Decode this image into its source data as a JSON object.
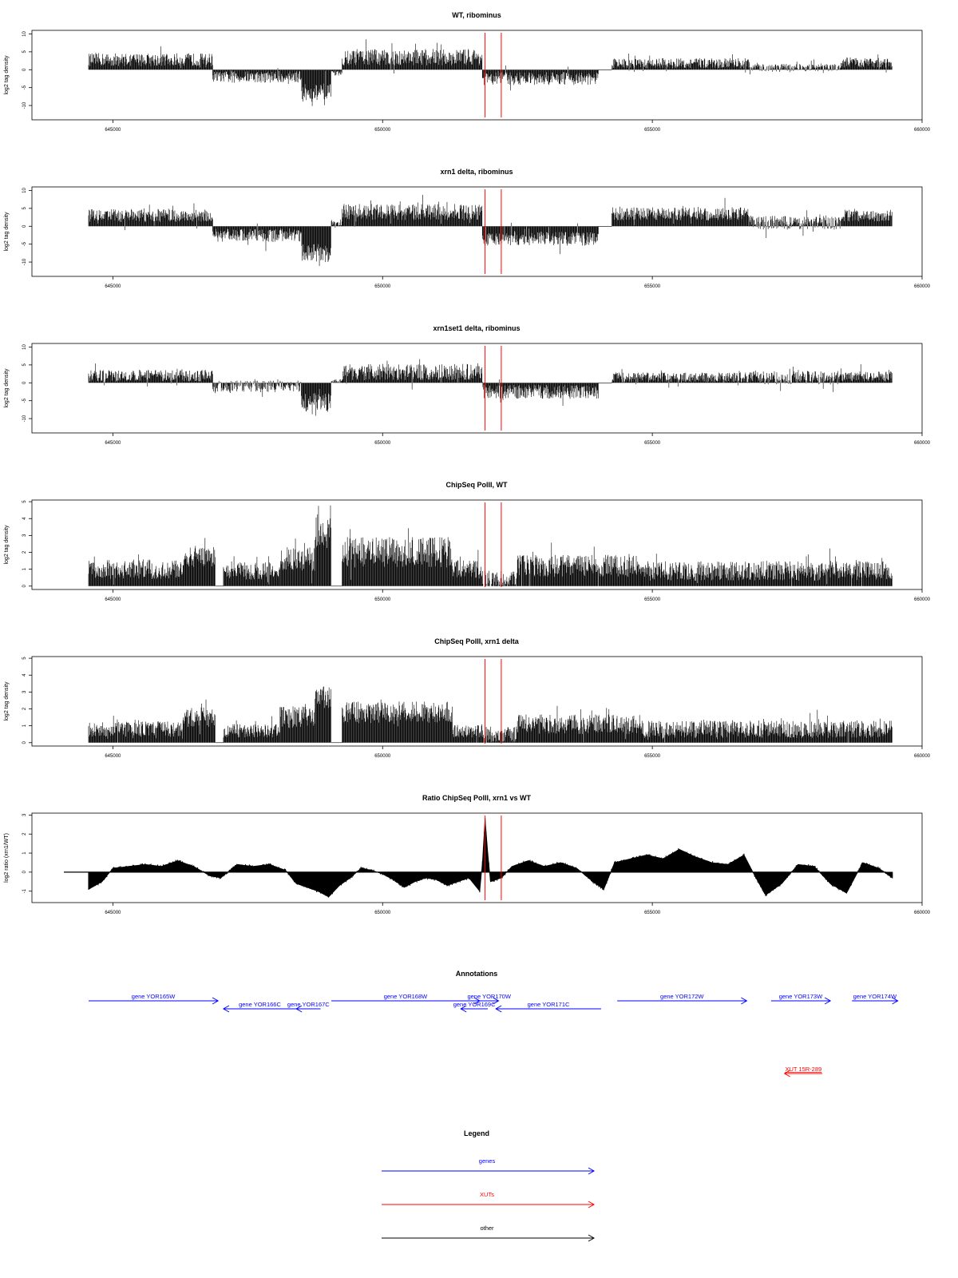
{
  "chart_data": [
    {
      "type": "bar",
      "title": "WT, ribominus",
      "ylabel": "log2 tag density",
      "ylim": [
        -14,
        11
      ],
      "yticks": [
        10,
        5,
        0,
        -5,
        -10
      ],
      "xlim": [
        643500,
        660000
      ],
      "xticks": [
        645000,
        650000,
        655000,
        660000
      ],
      "series": [
        {
          "segments": [
            {
              "x0": 644550,
              "x1": 646850,
              "mean": 2.8,
              "amp": 2.8
            },
            {
              "x0": 646850,
              "x1": 648500,
              "mean": -2.0,
              "amp": 2.5
            },
            {
              "x0": 648500,
              "x1": 649050,
              "mean": -6.5,
              "amp": 4.0
            },
            {
              "x0": 649050,
              "x1": 649250,
              "mean": -1.0,
              "amp": 1.0
            },
            {
              "x0": 649250,
              "x1": 651850,
              "mean": 3.5,
              "amp": 3.5
            },
            {
              "x0": 651850,
              "x1": 654000,
              "mean": -2.5,
              "amp": 2.8
            },
            {
              "x0": 654000,
              "x1": 654250,
              "mean": 0,
              "amp": 0
            },
            {
              "x0": 654250,
              "x1": 656800,
              "mean": 1.8,
              "amp": 2.2
            },
            {
              "x0": 656800,
              "x1": 658500,
              "mean": 0.6,
              "amp": 1.6
            },
            {
              "x0": 658500,
              "x1": 659450,
              "mean": 2.0,
              "amp": 2.2
            }
          ]
        }
      ],
      "markers": [
        651900,
        652200
      ]
    },
    {
      "type": "bar",
      "title": "xrn1 delta, ribominus",
      "ylabel": "log2 tag density",
      "ylim": [
        -14,
        11
      ],
      "yticks": [
        10,
        5,
        0,
        -5,
        -10
      ],
      "xlim": [
        643500,
        660000
      ],
      "xticks": [
        645000,
        650000,
        655000,
        660000
      ],
      "series": [
        {
          "segments": [
            {
              "x0": 644550,
              "x1": 646850,
              "mean": 3.0,
              "amp": 2.8
            },
            {
              "x0": 646850,
              "x1": 648500,
              "mean": -2.5,
              "amp": 2.8
            },
            {
              "x0": 648500,
              "x1": 649050,
              "mean": -7.5,
              "amp": 4.0
            },
            {
              "x0": 649050,
              "x1": 649250,
              "mean": 1.0,
              "amp": 1.5
            },
            {
              "x0": 649250,
              "x1": 651850,
              "mean": 4.0,
              "amp": 3.5
            },
            {
              "x0": 651850,
              "x1": 654000,
              "mean": -3.5,
              "amp": 3.0
            },
            {
              "x0": 654000,
              "x1": 654250,
              "mean": 0,
              "amp": 0
            },
            {
              "x0": 654250,
              "x1": 656800,
              "mean": 3.5,
              "amp": 2.8
            },
            {
              "x0": 656800,
              "x1": 658500,
              "mean": 1.0,
              "amp": 3.0
            },
            {
              "x0": 658500,
              "x1": 659450,
              "mean": 3.0,
              "amp": 2.5
            }
          ]
        }
      ],
      "markers": [
        651900,
        652200
      ]
    },
    {
      "type": "bar",
      "title": "xrn1set1 delta, ribominus",
      "ylabel": "log2 tag density",
      "ylim": [
        -14,
        11
      ],
      "yticks": [
        10,
        5,
        0,
        -5,
        -10
      ],
      "xlim": [
        643500,
        660000
      ],
      "xticks": [
        645000,
        650000,
        655000,
        660000
      ],
      "series": [
        {
          "segments": [
            {
              "x0": 644550,
              "x1": 646850,
              "mean": 2.0,
              "amp": 2.5
            },
            {
              "x0": 646850,
              "x1": 648500,
              "mean": -1.0,
              "amp": 2.5
            },
            {
              "x0": 648500,
              "x1": 649050,
              "mean": -5.5,
              "amp": 4.0
            },
            {
              "x0": 649050,
              "x1": 649250,
              "mean": 0.5,
              "amp": 0.8
            },
            {
              "x0": 649250,
              "x1": 651850,
              "mean": 3.0,
              "amp": 3.5
            },
            {
              "x0": 651850,
              "x1": 654000,
              "mean": -2.5,
              "amp": 3.0
            },
            {
              "x0": 654000,
              "x1": 654250,
              "mean": 0,
              "amp": 0
            },
            {
              "x0": 654250,
              "x1": 656800,
              "mean": 1.5,
              "amp": 2.2
            },
            {
              "x0": 656800,
              "x1": 658500,
              "mean": 1.5,
              "amp": 3.0
            },
            {
              "x0": 658500,
              "x1": 659450,
              "mean": 1.8,
              "amp": 2.2
            }
          ]
        }
      ],
      "markers": [
        651900,
        652200
      ]
    },
    {
      "type": "bar",
      "title": "ChipSeq PolII, WT",
      "ylabel": "log2 tag density",
      "ylim": [
        -0.2,
        5.1
      ],
      "yticks": [
        0,
        1,
        2,
        3,
        4,
        5
      ],
      "xlim": [
        643500,
        660000
      ],
      "xticks": [
        645000,
        650000,
        655000,
        660000
      ],
      "series": [
        {
          "segments": [
            {
              "x0": 644550,
              "x1": 646300,
              "mean": 1.0,
              "amp": 0.9
            },
            {
              "x0": 646300,
              "x1": 646900,
              "mean": 1.7,
              "amp": 0.9
            },
            {
              "x0": 646900,
              "x1": 647050,
              "mean": 0,
              "amp": 0
            },
            {
              "x0": 647050,
              "x1": 648100,
              "mean": 0.9,
              "amp": 0.8
            },
            {
              "x0": 648100,
              "x1": 648750,
              "mean": 1.6,
              "amp": 1.1
            },
            {
              "x0": 648750,
              "x1": 649050,
              "mean": 3.2,
              "amp": 1.5
            },
            {
              "x0": 649050,
              "x1": 649250,
              "mean": 0,
              "amp": 0
            },
            {
              "x0": 649250,
              "x1": 651300,
              "mean": 2.0,
              "amp": 1.4
            },
            {
              "x0": 651300,
              "x1": 651850,
              "mean": 1.0,
              "amp": 0.8
            },
            {
              "x0": 651850,
              "x1": 652500,
              "mean": 0.4,
              "amp": 0.8
            },
            {
              "x0": 652500,
              "x1": 654800,
              "mean": 1.2,
              "amp": 1.0
            },
            {
              "x0": 654800,
              "x1": 659450,
              "mean": 0.9,
              "amp": 0.9
            }
          ]
        }
      ],
      "markers": [
        651900,
        652200
      ]
    },
    {
      "type": "bar",
      "title": "ChipSeq PolII, xrn1 delta",
      "ylabel": "log2 tag density",
      "ylim": [
        -0.2,
        5.1
      ],
      "yticks": [
        0,
        1,
        2,
        3,
        4,
        5
      ],
      "xlim": [
        643500,
        660000
      ],
      "xticks": [
        645000,
        650000,
        655000,
        660000
      ],
      "series": [
        {
          "segments": [
            {
              "x0": 644550,
              "x1": 646300,
              "mean": 0.8,
              "amp": 0.7
            },
            {
              "x0": 646300,
              "x1": 646900,
              "mean": 1.5,
              "amp": 0.9
            },
            {
              "x0": 646900,
              "x1": 647050,
              "mean": 0,
              "amp": 0
            },
            {
              "x0": 647050,
              "x1": 648100,
              "mean": 0.7,
              "amp": 0.6
            },
            {
              "x0": 648100,
              "x1": 648750,
              "mean": 1.5,
              "amp": 1.0
            },
            {
              "x0": 648750,
              "x1": 649050,
              "mean": 2.7,
              "amp": 1.0
            },
            {
              "x0": 649050,
              "x1": 649250,
              "mean": 0,
              "amp": 0
            },
            {
              "x0": 649250,
              "x1": 651300,
              "mean": 1.8,
              "amp": 1.0
            },
            {
              "x0": 651300,
              "x1": 651850,
              "mean": 0.7,
              "amp": 0.6
            },
            {
              "x0": 651850,
              "x1": 652500,
              "mean": 0.5,
              "amp": 0.7
            },
            {
              "x0": 652500,
              "x1": 654800,
              "mean": 1.1,
              "amp": 0.9
            },
            {
              "x0": 654800,
              "x1": 659450,
              "mean": 0.8,
              "amp": 0.8
            }
          ]
        }
      ],
      "markers": [
        651900,
        652200
      ]
    },
    {
      "type": "area",
      "title": "Ratio ChipSeq PolII, xrn1 vs WT",
      "ylabel": "log2 ratio (xrn1/WT)",
      "ylim": [
        -1.6,
        3.1
      ],
      "yticks": [
        3,
        2,
        1,
        0,
        -1
      ],
      "xlim": [
        643500,
        660000
      ],
      "xticks": [
        645000,
        650000,
        655000,
        660000
      ],
      "series": [
        {
          "x": [
            644550,
            644800,
            645000,
            645300,
            645600,
            645900,
            646200,
            646500,
            646800,
            647000,
            647300,
            647600,
            647900,
            648200,
            648400,
            648600,
            648800,
            649000,
            649200,
            649400,
            649600,
            649800,
            650000,
            650200,
            650400,
            650600,
            650800,
            651000,
            651200,
            651400,
            651600,
            651800,
            651850,
            651900,
            651950,
            652000,
            652200,
            652400,
            652700,
            653000,
            653300,
            653600,
            653900,
            654100,
            654300,
            654600,
            654900,
            655200,
            655500,
            655800,
            656100,
            656400,
            656700,
            656900,
            657100,
            657400,
            657700,
            658000,
            658300,
            658600,
            658900,
            659200,
            659450
          ],
          "values": [
            -0.9,
            -0.5,
            0.2,
            0.3,
            0.4,
            0.3,
            0.6,
            0.3,
            -0.2,
            -0.3,
            0.4,
            0.3,
            0.4,
            0.1,
            -0.6,
            -0.8,
            -1.0,
            -1.3,
            -0.7,
            -0.3,
            0.2,
            0.1,
            -0.1,
            -0.4,
            -0.8,
            -0.5,
            -0.3,
            -0.4,
            -0.7,
            -0.5,
            -0.3,
            -1.0,
            0.5,
            2.8,
            1.0,
            -0.5,
            -0.3,
            0.3,
            0.6,
            0.3,
            0.5,
            0.2,
            -0.5,
            -0.9,
            0.5,
            0.7,
            0.9,
            0.7,
            1.2,
            0.8,
            0.5,
            0.4,
            0.9,
            -0.2,
            -1.2,
            -0.6,
            0.4,
            0.3,
            -0.6,
            -1.1,
            0.5,
            0.2,
            -0.3
          ]
        }
      ],
      "markers": [
        651900,
        652200
      ]
    }
  ],
  "annotations": {
    "title": "Annotations",
    "xlim": [
      643500,
      660000
    ],
    "items": [
      {
        "label": "gene YOR165W",
        "x0": 644550,
        "x1": 646950,
        "row": 0,
        "dir": "right",
        "color": "#0000ff"
      },
      {
        "label": "gene YOR166C",
        "x0": 647050,
        "x1": 648400,
        "row": 1,
        "dir": "left",
        "color": "#0000ff"
      },
      {
        "label": "gene YOR167C",
        "x0": 648400,
        "x1": 648850,
        "row": 1,
        "dir": "left",
        "color": "#0000ff"
      },
      {
        "label": "gene YOR168W",
        "x0": 649050,
        "x1": 651800,
        "row": 0,
        "dir": "right",
        "color": "#0000ff"
      },
      {
        "label": "gene YOR169C",
        "x0": 651450,
        "x1": 651950,
        "row": 1,
        "dir": "left",
        "color": "#0000ff"
      },
      {
        "label": "gene YOR170W",
        "x0": 651800,
        "x1": 652150,
        "row": 0,
        "dir": "right",
        "color": "#0000ff"
      },
      {
        "label": "gene YOR171C",
        "x0": 652100,
        "x1": 654050,
        "row": 1,
        "dir": "left",
        "color": "#0000ff"
      },
      {
        "label": "gene YOR172W",
        "x0": 654350,
        "x1": 656750,
        "row": 0,
        "dir": "right",
        "color": "#0000ff"
      },
      {
        "label": "gene YOR173W",
        "x0": 657200,
        "x1": 658300,
        "row": 0,
        "dir": "right",
        "color": "#0000ff"
      },
      {
        "label": "gene YOR174W",
        "x0": 658700,
        "x1": 659550,
        "row": 0,
        "dir": "right",
        "color": "#0000ff"
      },
      {
        "label": "XUT 15R-289",
        "x0": 657450,
        "x1": 658150,
        "row": 2,
        "dir": "left",
        "color": "#ff0000"
      }
    ]
  },
  "legend": {
    "title": "Legend",
    "items": [
      {
        "label": "genes",
        "color": "#0000ff"
      },
      {
        "label": "XUTs",
        "color": "#ff0000"
      },
      {
        "label": "other",
        "color": "#000000"
      }
    ]
  }
}
